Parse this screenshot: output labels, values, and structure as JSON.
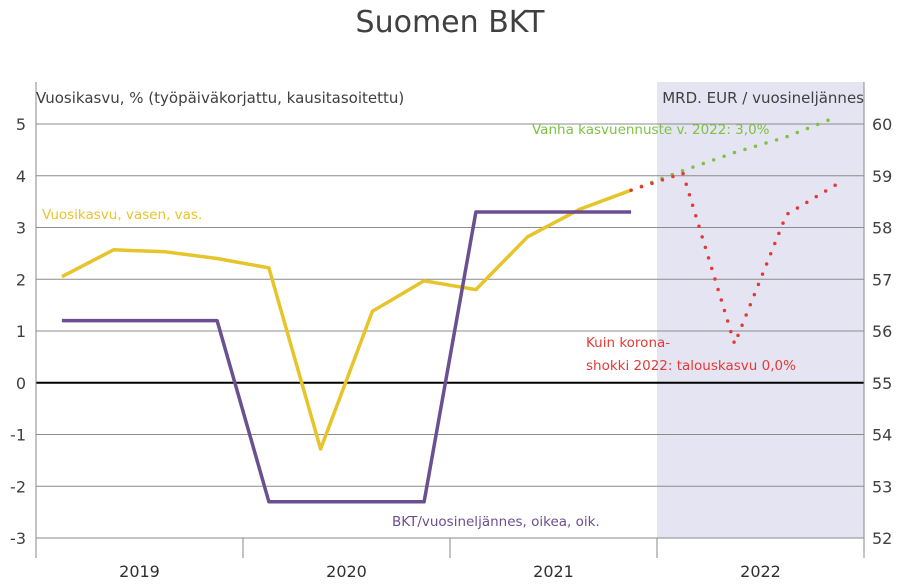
{
  "chart_data": {
    "type": "line",
    "title": "Suomen BKT",
    "left_axis": {
      "label": "Vuosikasvu, % (työpäiväkorjattu, kausitasoitettu)",
      "range": [
        -3,
        5
      ],
      "ticks": [
        "5",
        "4",
        "3",
        "2",
        "1",
        "0",
        "-1",
        "-2",
        "-3"
      ]
    },
    "right_axis": {
      "label": "MRD. EUR / vuosineljännes",
      "range": [
        52,
        60
      ],
      "ticks": [
        "60",
        "59",
        "58",
        "57",
        "56",
        "55",
        "54",
        "53",
        "52"
      ]
    },
    "years": [
      "2019",
      "2020",
      "2021",
      "2022"
    ],
    "forecast_shading": {
      "from_year": "2022"
    },
    "series": [
      {
        "id": "vuosikasvu",
        "axis": "left",
        "color": "#E6C42A",
        "style": "solid",
        "label": "Vuosikasvu, vasen, vas.",
        "points": [
          [
            2019.0,
            2.05
          ],
          [
            2019.25,
            2.57
          ],
          [
            2019.5,
            2.53
          ],
          [
            2019.75,
            2.4
          ],
          [
            2020.0,
            2.22
          ],
          [
            2020.25,
            -1.28
          ],
          [
            2020.5,
            1.38
          ],
          [
            2020.75,
            1.97
          ],
          [
            2021.0,
            1.8
          ],
          [
            2021.25,
            2.82
          ],
          [
            2021.5,
            3.35
          ],
          [
            2021.75,
            3.72
          ]
        ]
      },
      {
        "id": "bkt",
        "axis": "right",
        "color": "#6B4F91",
        "style": "solid",
        "label": "BKT/vuosineljännes, oikea, oik.",
        "points": [
          [
            2019.0,
            56.2
          ],
          [
            2019.25,
            56.2
          ],
          [
            2019.5,
            56.2
          ],
          [
            2019.75,
            56.2
          ],
          [
            2020.0,
            52.7
          ],
          [
            2020.25,
            52.7
          ],
          [
            2020.5,
            52.7
          ],
          [
            2020.75,
            52.7
          ],
          [
            2021.0,
            58.3
          ],
          [
            2021.25,
            58.3
          ],
          [
            2021.5,
            58.3
          ],
          [
            2021.75,
            58.3
          ]
        ]
      },
      {
        "id": "vanha-ennuste",
        "axis": "right",
        "color": "#7DC242",
        "style": "dotted",
        "label": "Vanha kasvuennuste v. 2022: 3,0%",
        "points": [
          [
            2021.75,
            58.72
          ],
          [
            2022.0,
            59.1
          ],
          [
            2022.25,
            59.45
          ],
          [
            2022.5,
            59.75
          ],
          [
            2022.75,
            60.15
          ]
        ]
      },
      {
        "id": "korona-shokki",
        "axis": "right",
        "color": "#E53935",
        "style": "dotted",
        "label": "Kuin korona-\nshokki 2022: talouskasvu 0,0%",
        "points": [
          [
            2021.75,
            58.72
          ],
          [
            2022.0,
            59.05
          ],
          [
            2022.25,
            55.75
          ],
          [
            2022.5,
            58.25
          ],
          [
            2022.75,
            58.85
          ]
        ]
      }
    ],
    "grid": true,
    "zero_line": true
  }
}
